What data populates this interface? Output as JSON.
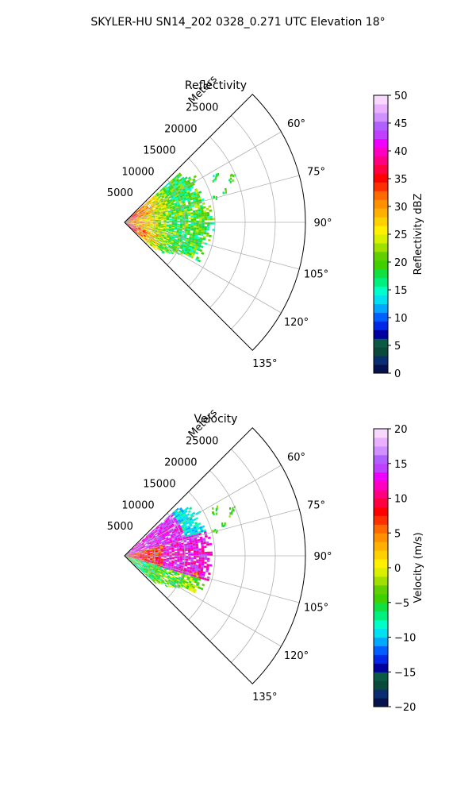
{
  "figure": {
    "suptitle": "SKYLER-HU  SN14_202  0328_0.271 UTC Elevation 18°"
  },
  "chart_data": [
    {
      "type": "heatmap",
      "projection": "polar-sector",
      "title": "Reflectivity",
      "radial_label": "Meters",
      "radial_ticks": [
        5000,
        10000,
        15000,
        20000,
        25000
      ],
      "radial_tick_labels": [
        "5000",
        "10000",
        "15000",
        "20000",
        "25000"
      ],
      "rlim": [
        0,
        30000
      ],
      "theta_ticks_deg": [
        60,
        75,
        90,
        105,
        120,
        135
      ],
      "theta_tick_labels": [
        "60°",
        "75°",
        "90°",
        "105°",
        "120°",
        "135°"
      ],
      "theta_range_deg": [
        45,
        135
      ],
      "grid": true,
      "colorbar": {
        "label": "Reflectivity dBZ",
        "ticks": [
          0,
          5,
          10,
          15,
          20,
          25,
          30,
          35,
          40,
          45,
          50
        ],
        "tick_labels": [
          "0",
          "5",
          "10",
          "15",
          "20",
          "25",
          "30",
          "35",
          "40",
          "45",
          "50"
        ],
        "range": [
          0,
          50
        ],
        "colors": [
          "#06124e",
          "#0a2c70",
          "#0a4a3a",
          "#0a5a46",
          "#0000a0",
          "#0028e6",
          "#0060ff",
          "#00a8ff",
          "#00e0f0",
          "#00ffc8",
          "#00f080",
          "#10e040",
          "#40d000",
          "#60d000",
          "#a0e000",
          "#d8f000",
          "#fff000",
          "#ffd000",
          "#ffb000",
          "#ff9000",
          "#ff6a00",
          "#ff3000",
          "#ff0000",
          "#ff0040",
          "#ff0080",
          "#ff00c0",
          "#f000ff",
          "#c040ff",
          "#b060ff",
          "#d090ff",
          "#e8b0ff",
          "#f8d8ff"
        ]
      }
    },
    {
      "type": "heatmap",
      "projection": "polar-sector",
      "title": "Velocity",
      "radial_label": "Meters",
      "radial_ticks": [
        5000,
        10000,
        15000,
        20000,
        25000
      ],
      "radial_tick_labels": [
        "5000",
        "10000",
        "15000",
        "20000",
        "25000"
      ],
      "rlim": [
        0,
        30000
      ],
      "theta_ticks_deg": [
        60,
        75,
        90,
        105,
        120,
        135
      ],
      "theta_tick_labels": [
        "60°",
        "75°",
        "90°",
        "105°",
        "120°",
        "135°"
      ],
      "theta_range_deg": [
        45,
        135
      ],
      "grid": true,
      "colorbar": {
        "label": "Velocity (m/s)",
        "ticks": [
          -20,
          -15,
          -10,
          -5,
          0,
          5,
          10,
          15,
          20
        ],
        "tick_labels": [
          "−20",
          "−15",
          "−10",
          "−5",
          "0",
          "5",
          "10",
          "15",
          "20"
        ],
        "range": [
          -20,
          20
        ],
        "colors": [
          "#06124e",
          "#0a2c70",
          "#0a4a3a",
          "#0a5a46",
          "#0000a0",
          "#0028e6",
          "#0060ff",
          "#00a8ff",
          "#00e0f0",
          "#00ffc8",
          "#00f080",
          "#10e040",
          "#40d000",
          "#60d000",
          "#a0e000",
          "#d8f000",
          "#fff000",
          "#ffd000",
          "#ffb000",
          "#ff9000",
          "#ff6a00",
          "#ff3000",
          "#ff0000",
          "#ff0040",
          "#ff0080",
          "#ff00c0",
          "#f000ff",
          "#c040ff",
          "#b060ff",
          "#d090ff",
          "#e8b0ff",
          "#f8d8ff"
        ]
      }
    }
  ]
}
